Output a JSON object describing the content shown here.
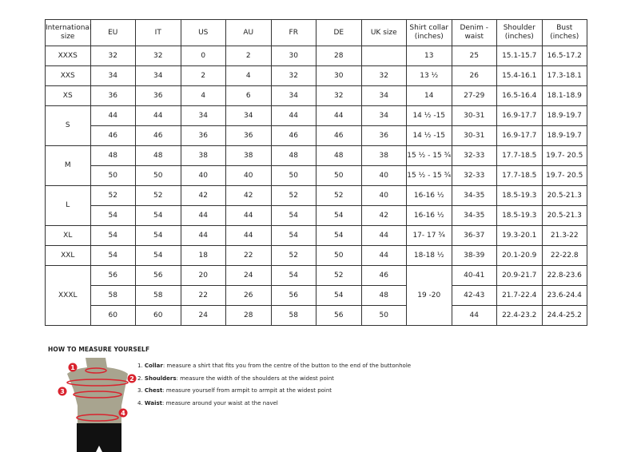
{
  "headers": [
    "International size",
    "EU",
    "IT",
    "US",
    "AU",
    "FR",
    "DE",
    "UK size",
    "Shirt collar (inches)",
    "Denim - waist",
    "Shoulder (inches)",
    "Bust (inches)"
  ],
  "groups": [
    {
      "size": "XXXS",
      "rows": [
        [
          "32",
          "32",
          "0",
          "2",
          "30",
          "28",
          "",
          "13",
          "25",
          "15.1-15.7",
          "16.5-17.2"
        ]
      ]
    },
    {
      "size": "XXS",
      "rows": [
        [
          "34",
          "34",
          "2",
          "4",
          "32",
          "30",
          "32",
          "13 ½",
          "26",
          "15.4-16.1",
          "17.3-18.1"
        ]
      ]
    },
    {
      "size": "XS",
      "rows": [
        [
          "36",
          "36",
          "4",
          "6",
          "34",
          "32",
          "34",
          "14",
          "27-29",
          "16.5-16.4",
          "18.1-18.9"
        ]
      ]
    },
    {
      "size": "S",
      "rows": [
        [
          "44",
          "44",
          "34",
          "34",
          "44",
          "44",
          "34",
          "14 ½ -15",
          "30-31",
          "16.9-17.7",
          "18.9-19.7"
        ],
        [
          "46",
          "46",
          "36",
          "36",
          "46",
          "46",
          "36",
          "14 ½ -15",
          "30-31",
          "16.9-17.7",
          "18.9-19.7"
        ]
      ]
    },
    {
      "size": "M",
      "rows": [
        [
          "48",
          "48",
          "38",
          "38",
          "48",
          "48",
          "38",
          "15 ½ - 15 ¾",
          "32-33",
          "17.7-18.5",
          "19.7- 20.5"
        ],
        [
          "50",
          "50",
          "40",
          "40",
          "50",
          "50",
          "40",
          "15 ½ - 15 ¾",
          "32-33",
          "17.7-18.5",
          "19.7- 20.5"
        ]
      ]
    },
    {
      "size": "L",
      "rows": [
        [
          "52",
          "52",
          "42",
          "42",
          "52",
          "52",
          "40",
          "16-16 ½",
          "34-35",
          "18.5-19.3",
          "20.5-21.3"
        ],
        [
          "54",
          "54",
          "44",
          "44",
          "54",
          "54",
          "42",
          "16-16 ½",
          "34-35",
          "18.5-19.3",
          "20.5-21.3"
        ]
      ]
    },
    {
      "size": "XL",
      "rows": [
        [
          "54",
          "54",
          "44",
          "44",
          "54",
          "54",
          "44",
          "17- 17 ¾",
          "36-37",
          "19.3-20.1",
          "21.3-22"
        ]
      ]
    },
    {
      "size": "XXL",
      "rows": [
        [
          "54",
          "54",
          "18",
          "22",
          "52",
          "50",
          "44",
          "18-18 ½",
          "38-39",
          "20.1-20.9",
          "22-22.8"
        ]
      ]
    },
    {
      "size": "XXXL",
      "collar": "19 -20",
      "rows": [
        [
          "56",
          "56",
          "20",
          "24",
          "54",
          "52",
          "46",
          null,
          "40-41",
          "20.9-21.7",
          "22.8-23.6"
        ],
        [
          "58",
          "58",
          "22",
          "26",
          "56",
          "54",
          "48",
          null,
          "42-43",
          "21.7-22.4",
          "23.6-24.4"
        ],
        [
          "60",
          "60",
          "24",
          "28",
          "58",
          "56",
          "50",
          null,
          "44",
          "22.4-23.2",
          "24.4-25.2"
        ]
      ]
    }
  ],
  "howto": {
    "title": "HOW TO MEASURE YOURSELF",
    "steps": [
      {
        "num": "1.",
        "term": "Collar",
        "text": ": measure a shirt that fits you from the centre of the button to the end of the buttonhole"
      },
      {
        "num": "2.",
        "term": "Shoulders",
        "text": ": measure the width of the shoulders at the widest point"
      },
      {
        "num": "3.",
        "term": "Chest",
        "text": ": measure yourself from armpit to armpit at the widest point"
      },
      {
        "num": "4.",
        "term": "Waist",
        "text": ": measure around your waist at the navel"
      }
    ],
    "markers": [
      "1",
      "2",
      "3",
      "4"
    ],
    "accent": "#d9232e"
  }
}
